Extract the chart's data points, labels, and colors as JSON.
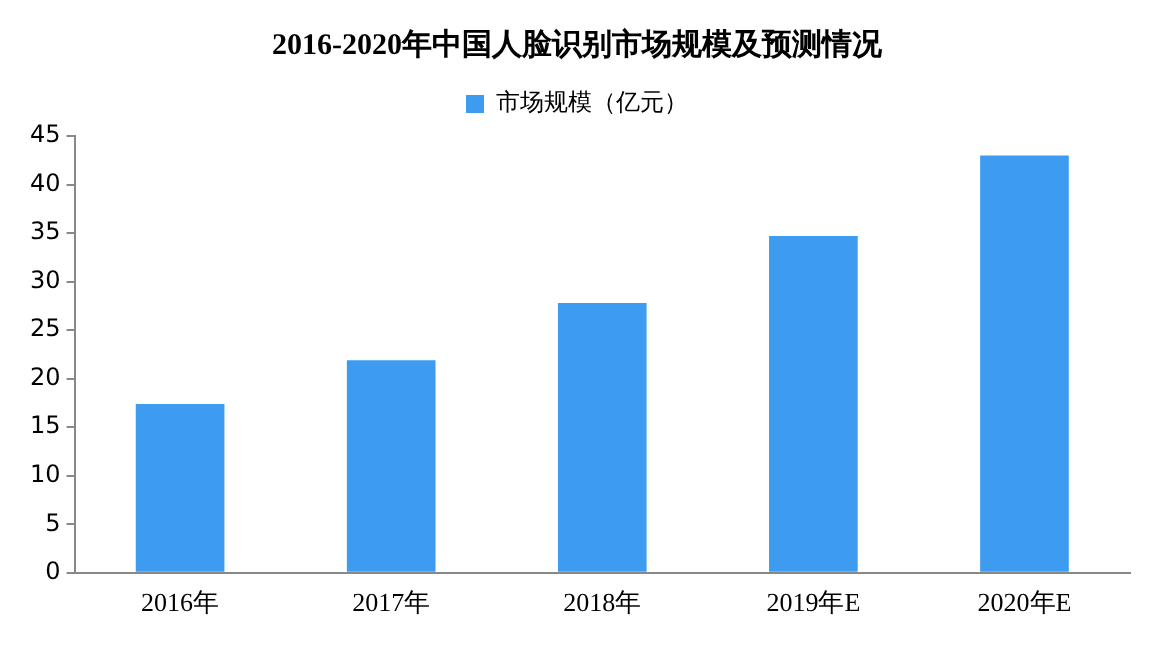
{
  "chart_data": {
    "type": "bar",
    "title": "2016-2020年中国人脸识别市场规模及预测情况",
    "categories": [
      "2016年",
      "2017年",
      "2018年",
      "2019年E",
      "2020年E"
    ],
    "series": [
      {
        "name": "市场规模（亿元）",
        "color": "#3d9bf0",
        "values": [
          17.4,
          21.9,
          27.8,
          34.7,
          43.0
        ]
      }
    ],
    "ylim": [
      0,
      45
    ],
    "yticks": [
      0,
      5,
      10,
      15,
      20,
      25,
      30,
      35,
      40,
      45
    ],
    "grid": false,
    "legend": "top"
  }
}
